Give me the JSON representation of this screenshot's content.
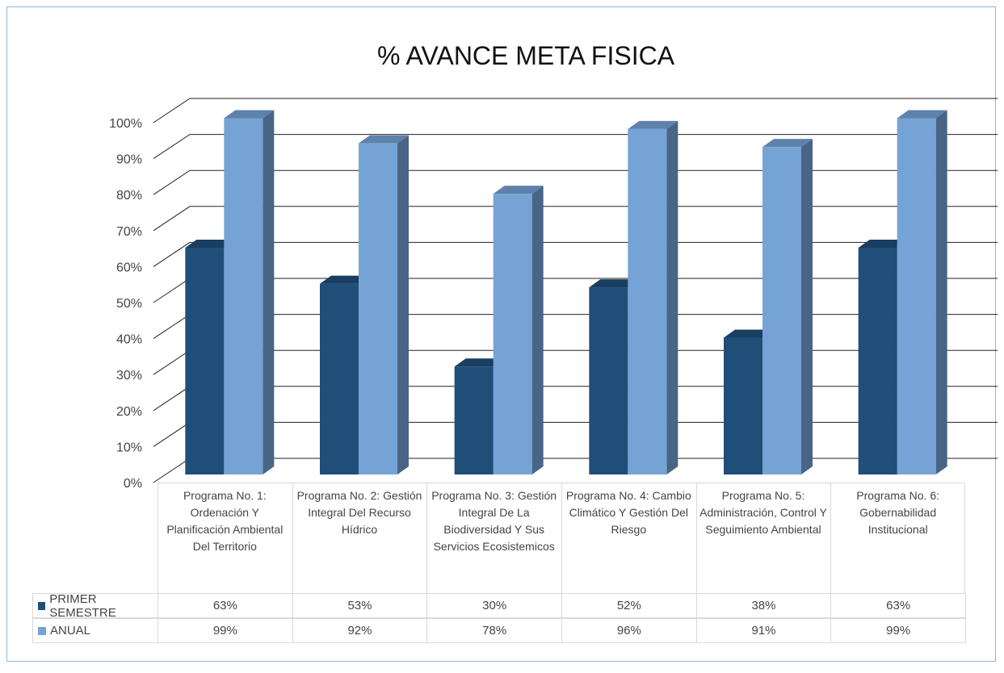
{
  "chart_data": {
    "type": "bar3d",
    "title": "% AVANCE META FISICA",
    "categories": [
      "Programa No. 1: Ordenación Y Planificación Ambiental Del Territorio",
      "Programa No. 2: Gestión Integral Del Recurso Hídrico",
      "Programa No. 3: Gestión Integral De La Biodiversidad Y Sus Servicios Ecosistemicos",
      "Programa No. 4: Cambio Climático Y Gestión Del Riesgo",
      "Programa No. 5: Administración, Control Y Seguimiento Ambiental",
      "Programa No. 6: Gobernabilidad Institucional"
    ],
    "series": [
      {
        "name": "PRIMER SEMESTRE",
        "color": "#1f4e79",
        "values": [
          63,
          53,
          30,
          52,
          38,
          63
        ],
        "value_labels": [
          "63%",
          "53%",
          "30%",
          "52%",
          "38%",
          "63%"
        ]
      },
      {
        "name": "ANUAL",
        "color": "#75a3d6",
        "values": [
          99,
          92,
          78,
          96,
          91,
          99
        ],
        "value_labels": [
          "99%",
          "92%",
          "78%",
          "96%",
          "91%",
          "99%"
        ]
      }
    ],
    "ylim": [
      0,
      100
    ],
    "yticks": [
      {
        "value": 0,
        "label": "0%"
      },
      {
        "value": 10,
        "label": "10%"
      },
      {
        "value": 20,
        "label": "20%"
      },
      {
        "value": 30,
        "label": "30%"
      },
      {
        "value": 40,
        "label": "40%"
      },
      {
        "value": 50,
        "label": "50%"
      },
      {
        "value": 60,
        "label": "60%"
      },
      {
        "value": 70,
        "label": "70%"
      },
      {
        "value": 80,
        "label": "80%"
      },
      {
        "value": 90,
        "label": "90%"
      },
      {
        "value": 100,
        "label": "100%"
      }
    ],
    "grid": true
  }
}
